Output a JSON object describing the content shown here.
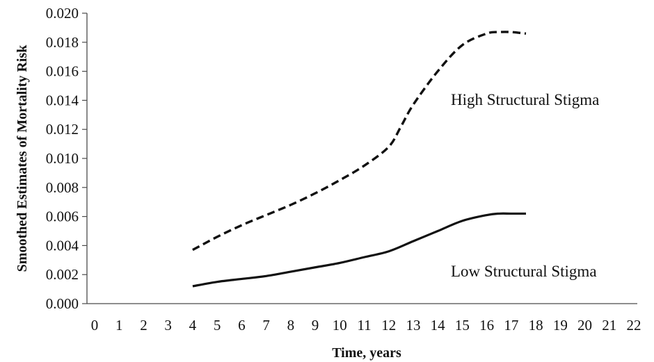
{
  "chart_data": {
    "type": "line",
    "title": "",
    "xlabel": "Time, years",
    "ylabel": "Smoothed Estimates of Mortality Risk",
    "xlim": [
      0,
      22
    ],
    "ylim": [
      0,
      0.02
    ],
    "x_ticks": [
      "0",
      "1",
      "2",
      "3",
      "4",
      "5",
      "6",
      "7",
      "8",
      "9",
      "10",
      "11",
      "12",
      "13",
      "14",
      "15",
      "16",
      "17",
      "18",
      "19",
      "20",
      "21",
      "22"
    ],
    "y_ticks": [
      "0.000",
      "0.002",
      "0.004",
      "0.006",
      "0.008",
      "0.010",
      "0.012",
      "0.014",
      "0.016",
      "0.018",
      "0.020"
    ],
    "grid": false,
    "legend": "none",
    "series": [
      {
        "name": "High Structural Stigma",
        "style": "dashed",
        "color": "#111111",
        "x": [
          4,
          5,
          6,
          7,
          8,
          9,
          10,
          11,
          12,
          12.5,
          13,
          14,
          15,
          16,
          16.5,
          17,
          17.6
        ],
        "y": [
          0.0037,
          0.0046,
          0.0054,
          0.0061,
          0.0068,
          0.0076,
          0.0085,
          0.0095,
          0.0108,
          0.0122,
          0.0137,
          0.016,
          0.0178,
          0.0186,
          0.0187,
          0.0187,
          0.0186
        ]
      },
      {
        "name": "Low Structural Stigma",
        "style": "solid",
        "color": "#111111",
        "x": [
          4,
          5,
          6,
          7,
          8,
          9,
          10,
          11,
          12,
          13,
          14,
          15,
          16,
          16.5,
          17,
          17.6
        ],
        "y": [
          0.0012,
          0.0015,
          0.0017,
          0.0019,
          0.0022,
          0.0025,
          0.0028,
          0.0032,
          0.0036,
          0.0043,
          0.005,
          0.0057,
          0.0061,
          0.0062,
          0.0062,
          0.0062
        ]
      }
    ]
  }
}
